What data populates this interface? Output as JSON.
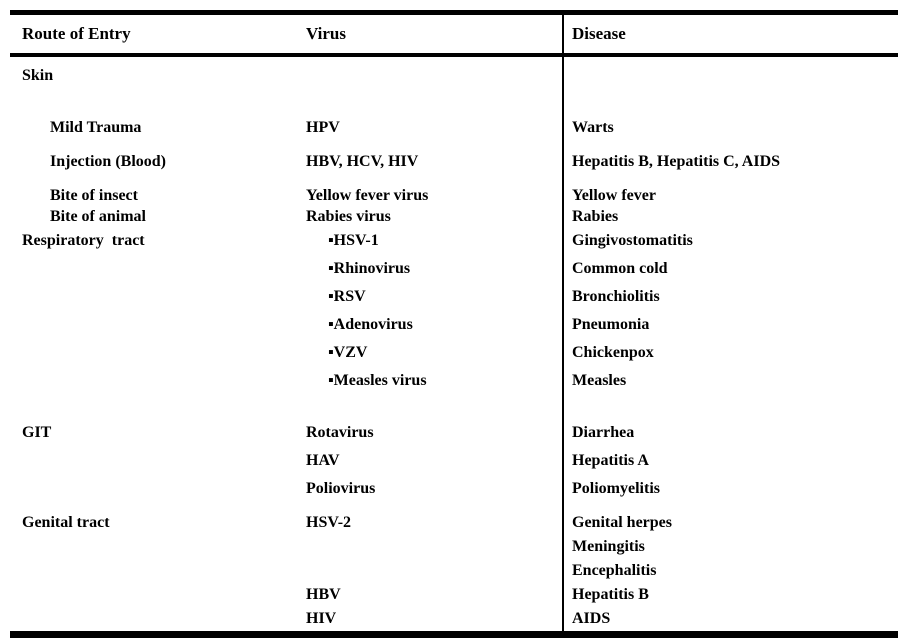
{
  "table": {
    "headers": [
      "Route of Entry",
      "Virus",
      "Disease"
    ],
    "sections": {
      "skin": {
        "label": "Skin"
      },
      "mild_trauma": {
        "entry": "Mild Trauma",
        "virus": "HPV",
        "disease": "Warts"
      },
      "injection": {
        "entry": "Injection (Blood)",
        "virus": "HBV, HCV, HIV",
        "disease": "Hepatitis B, Hepatitis C, AIDS"
      },
      "bites": {
        "entries": [
          "Bite of insect",
          "Bite of animal"
        ],
        "viruses": [
          "Yellow fever virus",
          "Rabies virus"
        ],
        "diseases": [
          "Yellow fever",
          "Rabies"
        ]
      },
      "respiratory": {
        "label": "Respiratory  tract",
        "viruses": [
          "▪HSV-1",
          "▪Rhinovirus",
          "▪RSV",
          "▪Adenovirus",
          "▪VZV",
          "▪Measles virus"
        ],
        "diseases": [
          "Gingivostomatitis",
          "Common cold",
          "Bronchiolitis",
          "Pneumonia",
          "Chickenpox",
          "Measles"
        ]
      },
      "git": {
        "label": "GIT",
        "viruses": [
          "Rotavirus",
          "HAV",
          "Poliovirus"
        ],
        "diseases": [
          "Diarrhea",
          "Hepatitis A",
          "Poliomyelitis"
        ]
      },
      "genital": {
        "label": "Genital tract",
        "viruses": [
          "HSV-2",
          "",
          "",
          "HBV",
          "HIV"
        ],
        "diseases": [
          "Genital herpes",
          "Meningitis",
          "Encephalitis",
          "Hepatitis B",
          "AIDS"
        ]
      }
    },
    "colors": {
      "text": "#000000",
      "rule": "#000000",
      "background": "#ffffff"
    }
  }
}
